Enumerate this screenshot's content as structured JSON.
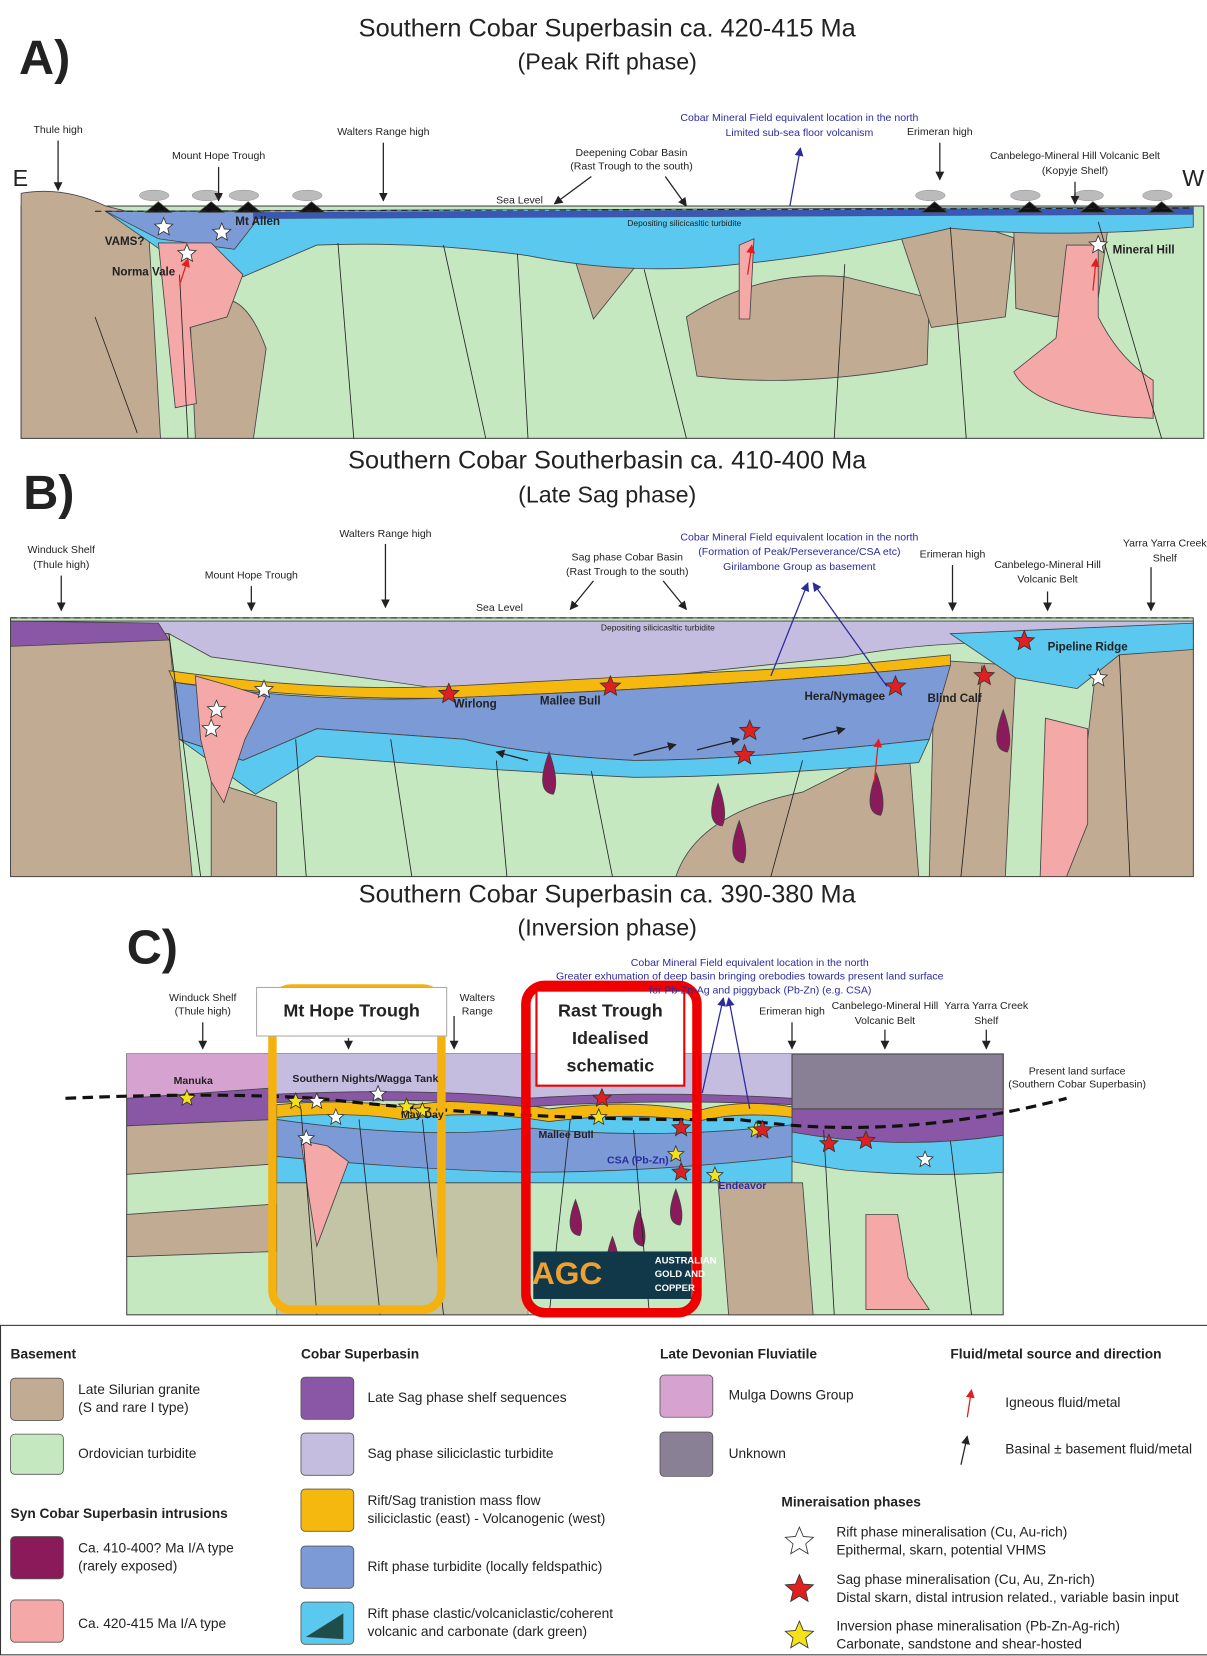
{
  "panels": [
    {
      "letter": "A)",
      "title": "Southern Cobar Superbasin ca. 420-415 Ma",
      "subtitle": "(Peak Rift phase)",
      "labels": [
        "Thule  high",
        "Mount Hope Trough",
        "Walters Range high",
        "Deepening Cobar Basin",
        "(Rast Trough to the south)",
        "Cobar Mineral Field equivalent location in the north",
        "Limited sub-sea floor volcanism",
        "Erimeran high",
        "Canbelego-Mineral Hill Volcanic Belt",
        "(Kopyje Shelf)",
        "E",
        "W",
        "Sea Level",
        "Depositing silicicasltic turbidite",
        "VAMS?",
        "Mt Allen",
        "Norma Vale",
        "Mineral Hill"
      ]
    },
    {
      "letter": "B)",
      "title": "Southern Cobar Southerbasin ca. 410-400 Ma",
      "subtitle": "(Late Sag phase)",
      "labels": [
        "Winduck Shelf",
        "(Thule high)",
        "Mount Hope Trough",
        "Walters Range high",
        "Sag phase Cobar Basin",
        "(Rast Trough to the south)",
        "Cobar Mineral Field equivalent location in the north",
        "(Formation of Peak/Perseverance/CSA etc)",
        "Girilambone Group as basement",
        "Erimeran high",
        "Canbelego-Mineral Hill",
        "Volcanic Belt",
        "Yarra Yarra Creek",
        "Shelf",
        "Sea Level",
        "Depositing silicicasltic turbidite",
        "Wirlong",
        "Mallee Bull",
        "Hera/Nymagee",
        "Blind Calf",
        "Pipeline Ridge"
      ]
    },
    {
      "letter": "C)",
      "title": "Southern Cobar Superbasin ca. 390-380 Ma",
      "subtitle": "(Inversion phase)",
      "labels": [
        "Cobar Mineral Field equivalent location in the north",
        "Greater exhumation of deep basin bringing orebodies towards present land surface",
        "for Pb-Zn-Ag and piggyback (Pb-Zn) (e.g. CSA)",
        "Winduck Shelf",
        "(Thule high)",
        "Mt Hope Trough",
        "Walters",
        "Range",
        "Rast Trough",
        "Idealised",
        "schematic",
        "Erimeran high",
        "Canbelego-Mineral Hill",
        "Volcanic Belt",
        "Yarra Yarra Creek",
        "Shelf",
        "Present land surface",
        "(Southern Cobar Superbasin)",
        "Manuka",
        "Southern Nights/Wagga Tank",
        "May Day",
        "Mallee Bull",
        "CSA (Pb-Zn)",
        "Endeavor",
        "AGC",
        "AUSTRALIAN",
        "GOLD AND",
        "COPPER"
      ]
    }
  ],
  "legend": {
    "groups": [
      {
        "heading": "Basement",
        "items": [
          [
            "Late Silurian granite",
            "(S and rare I type)"
          ],
          [
            "Ordovician turbidite"
          ]
        ]
      },
      {
        "heading": "Syn Cobar Superbasin intrusions",
        "items": [
          [
            "Ca. 410-400? Ma I/A type",
            "(rarely exposed)"
          ],
          [
            "Ca. 420-415 Ma I/A type"
          ]
        ]
      },
      {
        "heading": "Cobar Superbasin",
        "items": [
          [
            "Late Sag phase shelf sequences"
          ],
          [
            "Sag phase siliciclastic turbidite"
          ],
          [
            "Rift/Sag tranistion mass flow",
            "siliciclastic (east) - Volcanogenic (west)"
          ],
          [
            "Rift phase turbidite (locally feldspathic)"
          ],
          [
            "Rift phase clastic/volcaniclastic/coherent",
            " volcanic and carbonate (dark green)"
          ]
        ]
      },
      {
        "heading": "Late Devonian Fluviatile",
        "items": [
          [
            "Mulga Downs Group"
          ],
          [
            "Unknown"
          ]
        ]
      },
      {
        "heading": "Fluid/metal source and direction",
        "items": [
          [
            "Igneous fluid/metal"
          ],
          [
            "Basinal ± basement fluid/metal"
          ]
        ]
      },
      {
        "heading": "Mineraisation phases",
        "items": [
          [
            "Rift phase mineralisation (Cu, Au-rich)",
            "Epithermal, skarn, potential VHMS"
          ],
          [
            "Sag phase mineralisation (Cu, Au, Zn-rich)",
            "Distal skarn, distal intrusion related., variable basin input"
          ],
          [
            "Inversion phase mineralisation (Pb-Zn-Ag-rich)",
            "Carbonate, sandstone and shear-hosted"
          ]
        ]
      }
    ]
  }
}
